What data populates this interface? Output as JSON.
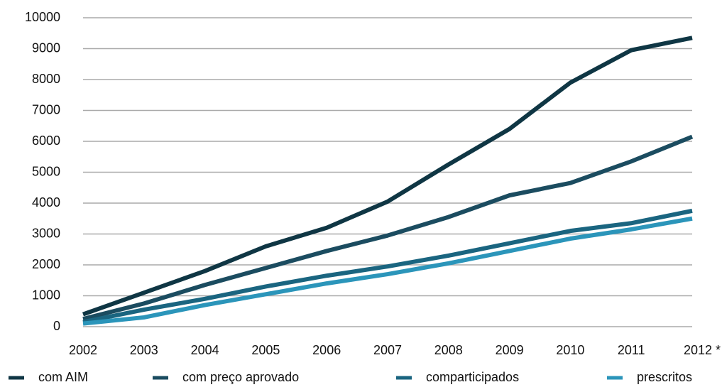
{
  "chart_data": {
    "type": "line",
    "categories": [
      "2002",
      "2003",
      "2004",
      "2005",
      "2006",
      "2007",
      "2008",
      "2009",
      "2010",
      "2011",
      "2012 *"
    ],
    "series": [
      {
        "name": "com AIM",
        "color": "#0f3644",
        "values": [
          400,
          1100,
          1800,
          2600,
          3200,
          4050,
          5250,
          6400,
          7900,
          8950,
          9350
        ]
      },
      {
        "name": "com preço aprovado",
        "color": "#1b4c60",
        "values": [
          250,
          750,
          1350,
          1900,
          2450,
          2950,
          3550,
          4250,
          4650,
          5350,
          6150
        ]
      },
      {
        "name": "comparticipados",
        "color": "#1a6580",
        "values": [
          150,
          550,
          900,
          1300,
          1650,
          1950,
          2300,
          2700,
          3100,
          3350,
          3750
        ]
      },
      {
        "name": "prescritos",
        "color": "#2b95ba",
        "values": [
          100,
          300,
          700,
          1050,
          1400,
          1700,
          2050,
          2450,
          2850,
          3150,
          3500
        ]
      }
    ],
    "ylim": [
      0,
      10000
    ],
    "yticks": [
      0,
      1000,
      2000,
      3000,
      4000,
      5000,
      6000,
      7000,
      8000,
      9000,
      10000
    ],
    "grid": true,
    "legend": "bottom"
  }
}
